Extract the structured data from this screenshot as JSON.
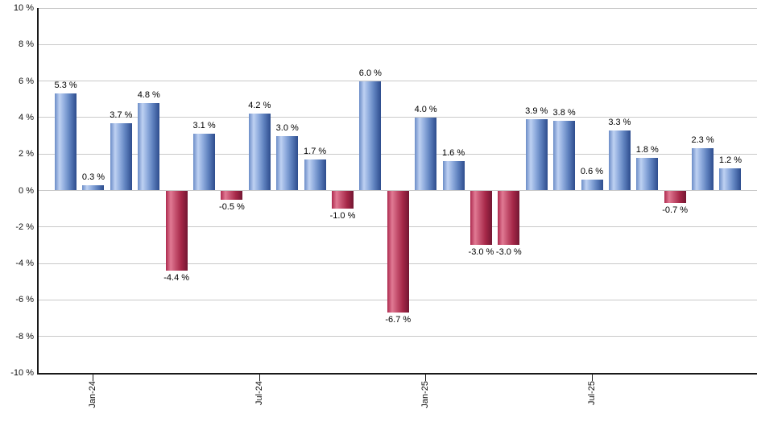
{
  "chart_data": {
    "type": "bar",
    "title": "",
    "xlabel": "",
    "ylabel": "",
    "ylim": [
      -10,
      10
    ],
    "grid": true,
    "values": [
      5.3,
      0.3,
      3.7,
      4.8,
      -4.4,
      3.1,
      -0.5,
      4.2,
      3.0,
      1.7,
      -1.0,
      6.0,
      -6.7,
      4.0,
      1.6,
      -3.0,
      -3.0,
      3.9,
      3.8,
      0.6,
      3.3,
      1.8,
      -0.7,
      2.3,
      1.2
    ],
    "bar_labels": [
      "5.3 %",
      "0.3 %",
      "3.7 %",
      "4.8 %",
      "-4.4 %",
      "3.1 %",
      "-0.5 %",
      "4.2 %",
      "3.0 %",
      "1.7 %",
      "-1.0 %",
      "6.0 %",
      "-6.7 %",
      "4.0 %",
      "1.6 %",
      "-3.0 %",
      "-3.0 %",
      "3.9 %",
      "3.8 %",
      "0.6 %",
      "3.3 %",
      "1.8 %",
      "-0.7 %",
      "2.3 %",
      "1.2 %"
    ],
    "x_ticks": [
      {
        "label": "Jan-24",
        "index": 1
      },
      {
        "label": "Jul-24",
        "index": 7
      },
      {
        "label": "Jan-25",
        "index": 13
      },
      {
        "label": "Jul-25",
        "index": 19
      }
    ],
    "y_ticks": [
      "10 %",
      "8 %",
      "6 %",
      "4 %",
      "2 %",
      "0 %",
      "-2 %",
      "-4 %",
      "-6 %",
      "-8 %",
      "-10 %"
    ],
    "colors": {
      "positive_bar": "#5d80bd",
      "positive_bar_highlight": "#bed1f2",
      "positive_bar_dark": "#2d4c8d",
      "negative_bar": "#a62848",
      "negative_bar_highlight": "#e17a94",
      "negative_bar_dark": "#731632",
      "gridline": "#c9c9c9",
      "axis": "#1a1a1a",
      "label_text": "#000000"
    }
  }
}
